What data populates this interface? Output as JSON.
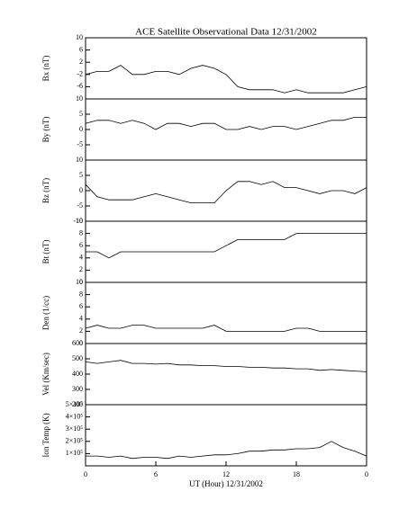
{
  "chart_data": [
    {
      "type": "line",
      "title": "ACE Satellite Observational Data   12/31/2002",
      "ylabel": "Bx (nT)",
      "color": "#000000",
      "xlim": [
        0,
        24
      ],
      "ylim": [
        -10,
        10
      ],
      "yticks": [
        -6,
        -2,
        2,
        6,
        10
      ],
      "x": [
        0,
        1,
        2,
        3,
        4,
        5,
        6,
        7,
        8,
        9,
        10,
        11,
        12,
        13,
        14,
        15,
        16,
        17,
        18,
        19,
        20,
        21,
        22,
        23,
        24
      ],
      "values": [
        -2,
        -1,
        -1,
        1,
        -2,
        -2,
        -1,
        -1,
        -2,
        0,
        1,
        0,
        -2,
        -6,
        -7,
        -7,
        -7,
        -8,
        -7,
        -8,
        -8,
        -8,
        -8,
        -7,
        -6
      ]
    },
    {
      "type": "line",
      "ylabel": "By (nT)",
      "color": "#000000",
      "xlim": [
        0,
        24
      ],
      "ylim": [
        -10,
        10
      ],
      "yticks": [
        -5,
        0,
        5,
        10
      ],
      "x": [
        0,
        1,
        2,
        3,
        4,
        5,
        6,
        7,
        8,
        9,
        10,
        11,
        12,
        13,
        14,
        15,
        16,
        17,
        18,
        19,
        20,
        21,
        22,
        23,
        24
      ],
      "values": [
        2,
        3,
        3,
        2,
        3,
        2,
        0,
        2,
        2,
        1,
        2,
        2,
        0,
        0,
        1,
        0,
        1,
        1,
        0,
        1,
        2,
        3,
        3,
        4,
        4
      ]
    },
    {
      "type": "line",
      "ylabel": "Bz (nT)",
      "color": "#000000",
      "xlim": [
        0,
        24
      ],
      "ylim": [
        -10,
        10
      ],
      "yticks": [
        -10,
        -5,
        0,
        5,
        10
      ],
      "x": [
        0,
        1,
        2,
        3,
        4,
        5,
        6,
        7,
        8,
        9,
        10,
        11,
        12,
        13,
        14,
        15,
        16,
        17,
        18,
        19,
        20,
        21,
        22,
        23,
        24
      ],
      "values": [
        2,
        -2,
        -3,
        -3,
        -3,
        -2,
        -1,
        -2,
        -3,
        -4,
        -4,
        -4,
        0,
        3,
        3,
        2,
        3,
        1,
        1,
        0,
        -1,
        0,
        0,
        -1,
        1
      ]
    },
    {
      "type": "line",
      "ylabel": "Bt (nT)",
      "color": "#000000",
      "xlim": [
        0,
        24
      ],
      "ylim": [
        0,
        10
      ],
      "yticks": [
        0,
        2,
        4,
        6,
        8,
        10
      ],
      "x": [
        0,
        1,
        2,
        3,
        4,
        5,
        6,
        7,
        8,
        9,
        10,
        11,
        12,
        13,
        14,
        15,
        16,
        17,
        18,
        19,
        20,
        21,
        22,
        23,
        24
      ],
      "values": [
        5,
        5,
        4,
        5,
        5,
        5,
        5,
        5,
        5,
        5,
        5,
        5,
        6,
        7,
        7,
        7,
        7,
        7,
        8,
        8,
        8,
        8,
        8,
        8,
        8
      ]
    },
    {
      "type": "line",
      "ylabel": "Den (1/cc)",
      "color": "#000000",
      "xlim": [
        0,
        24
      ],
      "ylim": [
        0,
        10
      ],
      "yticks": [
        0,
        2,
        4,
        6,
        8,
        10
      ],
      "x": [
        0,
        1,
        2,
        3,
        4,
        5,
        6,
        7,
        8,
        9,
        10,
        11,
        12,
        13,
        14,
        15,
        16,
        17,
        18,
        19,
        20,
        21,
        22,
        23,
        24
      ],
      "values": [
        2.5,
        3,
        2.5,
        2.5,
        3,
        3,
        2.5,
        2.5,
        2.5,
        2.5,
        2.5,
        3,
        2,
        2,
        2,
        2,
        2,
        2,
        2.5,
        2.5,
        2,
        2,
        2,
        2,
        2
      ]
    },
    {
      "type": "line",
      "ylabel": "Vel (Km/sec)",
      "color": "#000000",
      "xlim": [
        0,
        24
      ],
      "ylim": [
        200,
        600
      ],
      "yticks": [
        200,
        300,
        400,
        500,
        600
      ],
      "x": [
        0,
        1,
        2,
        3,
        4,
        5,
        6,
        7,
        8,
        9,
        10,
        11,
        12,
        13,
        14,
        15,
        16,
        17,
        18,
        19,
        20,
        21,
        22,
        23,
        24
      ],
      "values": [
        480,
        470,
        480,
        490,
        470,
        470,
        465,
        470,
        460,
        460,
        455,
        455,
        450,
        450,
        445,
        445,
        440,
        440,
        435,
        435,
        425,
        430,
        425,
        420,
        415
      ]
    },
    {
      "type": "line",
      "ylabel": "Ion Temp (K)",
      "xlabel": "UT (Hour)  12/31/2002",
      "color": "#000000",
      "xlim": [
        0,
        24
      ],
      "ylim": [
        0,
        500000
      ],
      "yticks": [
        {
          "value": 100000,
          "label": "1×10⁵"
        },
        {
          "value": 200000,
          "label": "2×10⁵"
        },
        {
          "value": 300000,
          "label": "3×10⁵"
        },
        {
          "value": 400000,
          "label": "4×10⁵"
        },
        {
          "value": 500000,
          "label": "5×10⁵"
        }
      ],
      "xticks": [
        0,
        6,
        12,
        18,
        {
          "value": 24,
          "label": "0"
        }
      ],
      "x": [
        0,
        1,
        2,
        3,
        4,
        5,
        6,
        7,
        8,
        9,
        10,
        11,
        12,
        13,
        14,
        15,
        16,
        17,
        18,
        19,
        20,
        21,
        22,
        23,
        24
      ],
      "values": [
        80000,
        80000,
        70000,
        80000,
        60000,
        70000,
        70000,
        60000,
        80000,
        70000,
        80000,
        90000,
        90000,
        100000,
        120000,
        120000,
        130000,
        130000,
        140000,
        140000,
        150000,
        200000,
        150000,
        120000,
        80000
      ]
    }
  ]
}
